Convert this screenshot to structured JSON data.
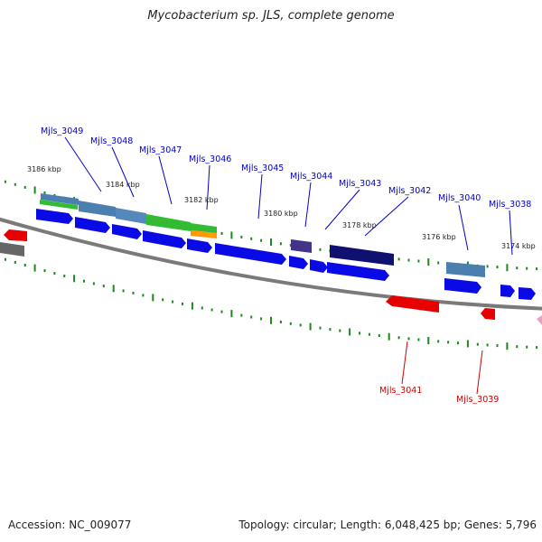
{
  "title": "Mycobacterium sp. JLS, complete genome",
  "footer": {
    "accession": "Accession: NC_009077",
    "summary": "Topology: circular; Length: 6,048,425 bp; Genes: 5,796"
  },
  "colors": {
    "forward_gene": "#0a0ae6",
    "reverse_gene": "#e60000",
    "backbone": "#808080",
    "tick": "#1a8a1a",
    "label_forward": "#0000cc",
    "label_reverse": "#cc0000"
  },
  "kbp_labels": [
    "3186 kbp",
    "3184 kbp",
    "3182 kbp",
    "3180 kbp",
    "3178 kbp",
    "3176 kbp",
    "3174 kbp"
  ],
  "gene_labels_forward": [
    "Mjls_3049",
    "Mjls_3048",
    "Mjls_3047",
    "Mjls_3046",
    "Mjls_3045",
    "Mjls_3044",
    "Mjls_3043",
    "Mjls_3042",
    "Mjls_3040",
    "Mjls_3038"
  ],
  "gene_labels_reverse": [
    "Mjls_3041",
    "Mjls_3039"
  ]
}
